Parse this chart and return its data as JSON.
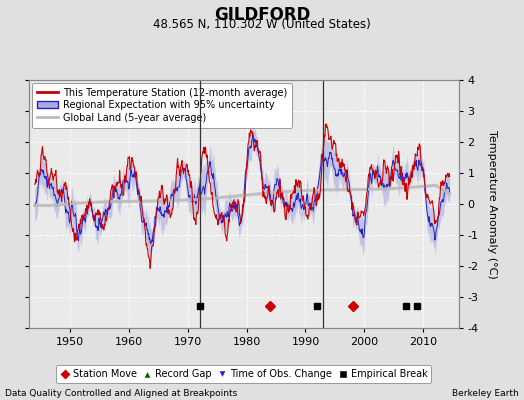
{
  "title": "GILDFORD",
  "subtitle": "48.565 N, 110.302 W (United States)",
  "ylabel": "Temperature Anomaly (°C)",
  "xlabel_left": "Data Quality Controlled and Aligned at Breakpoints",
  "xlabel_right": "Berkeley Earth",
  "ylim": [
    -4,
    4
  ],
  "xlim": [
    1943,
    2016
  ],
  "xticks": [
    1950,
    1960,
    1970,
    1980,
    1990,
    2000,
    2010
  ],
  "yticks": [
    -4,
    -3,
    -2,
    -1,
    0,
    1,
    2,
    3,
    4
  ],
  "bg_color": "#e0e0e0",
  "plot_bg_color": "#eaeaea",
  "grid_color": "#ffffff",
  "vertical_lines": [
    1972,
    1993
  ],
  "station_move_years": [
    1984,
    1998
  ],
  "empirical_break_years": [
    1972,
    1992,
    2007,
    2009
  ],
  "red_line_color": "#cc0000",
  "blue_line_color": "#2222cc",
  "blue_fill_color": "#aaaadd",
  "gray_line_color": "#bbbbbb",
  "legend_entries": [
    "This Temperature Station (12-month average)",
    "Regional Expectation with 95% uncertainty",
    "Global Land (5-year average)"
  ],
  "bottom_legend": [
    "Station Move",
    "Record Gap",
    "Time of Obs. Change",
    "Empirical Break"
  ]
}
